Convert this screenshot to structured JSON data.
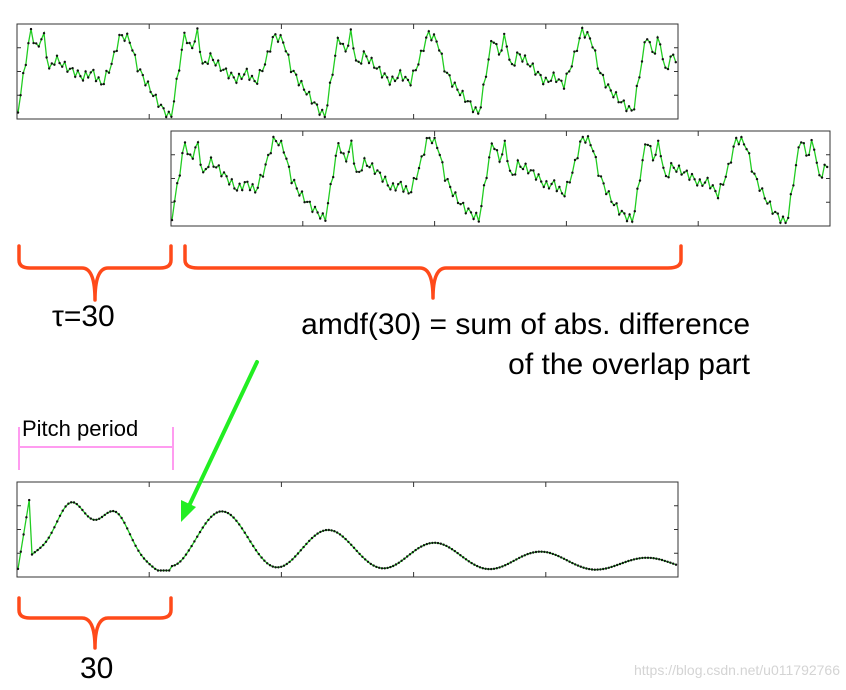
{
  "colors": {
    "signal": "#22cc22",
    "dot": "#111111",
    "brace": "#ff4a1a",
    "pitch": "#ff9cf0",
    "arrow": "#22ee22"
  },
  "labels": {
    "tau": "τ=30",
    "amdf_line1": "amdf(30) = sum of abs. difference",
    "amdf_line2": "of the overlap part",
    "pitch_period": "Pitch period",
    "thirty": "30",
    "watermark": "https://blog.csdn.net/u011792766"
  }
}
